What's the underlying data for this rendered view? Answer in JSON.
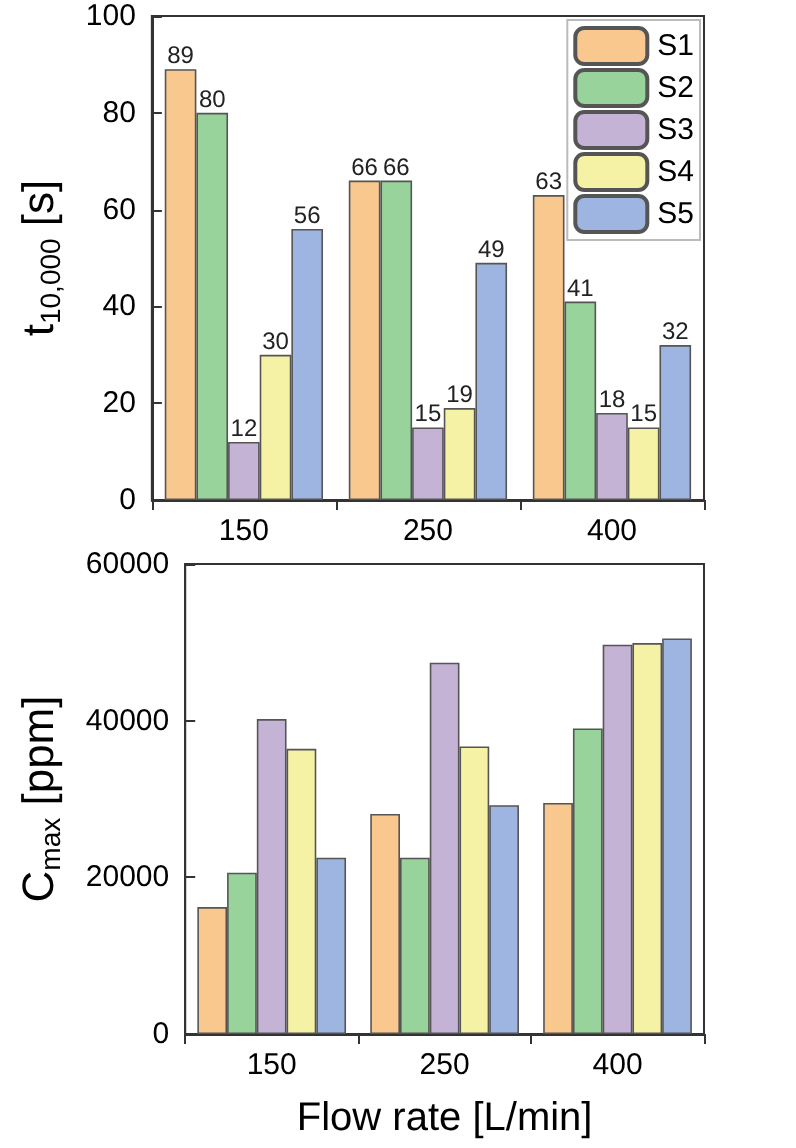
{
  "chart_data": [
    {
      "type": "bar",
      "ylabel": "t$_{10,000}$ [s]",
      "categories": [
        "150",
        "250",
        "400"
      ],
      "ylim": [
        0,
        100
      ],
      "yticks": [
        0,
        20,
        40,
        60,
        80,
        100
      ],
      "grid": false,
      "legend": "top right",
      "data_labels": true,
      "series": [
        {
          "name": "S1",
          "color": "#f9c88f",
          "values": [
            89,
            66,
            63
          ]
        },
        {
          "name": "S2",
          "color": "#97d39b",
          "values": [
            80,
            66,
            41
          ]
        },
        {
          "name": "S3",
          "color": "#c5b3d6",
          "values": [
            12,
            15,
            18
          ]
        },
        {
          "name": "S4",
          "color": "#f5f2a6",
          "values": [
            30,
            19,
            15
          ]
        },
        {
          "name": "S5",
          "color": "#9db5e0",
          "values": [
            56,
            49,
            32
          ]
        }
      ]
    },
    {
      "type": "bar",
      "ylabel": "C$_{max}$ [ppm]",
      "xlabel": "Flow rate [L/min]",
      "categories": [
        "150",
        "250",
        "400"
      ],
      "ylim": [
        0,
        60000
      ],
      "yticks": [
        0,
        20000,
        40000,
        60000
      ],
      "grid": false,
      "legend": false,
      "series": [
        {
          "color": "#f9c88f",
          "values": [
            16200,
            28100,
            29500
          ]
        },
        {
          "color": "#97d39b",
          "values": [
            20600,
            22500,
            39000
          ]
        },
        {
          "color": "#c5b3d6",
          "values": [
            40200,
            47400,
            49700
          ]
        },
        {
          "color": "#f5f2a6",
          "values": [
            36400,
            36700,
            49900
          ]
        },
        {
          "color": "#9db5e0",
          "values": [
            22500,
            29200,
            50500
          ]
        }
      ]
    }
  ]
}
